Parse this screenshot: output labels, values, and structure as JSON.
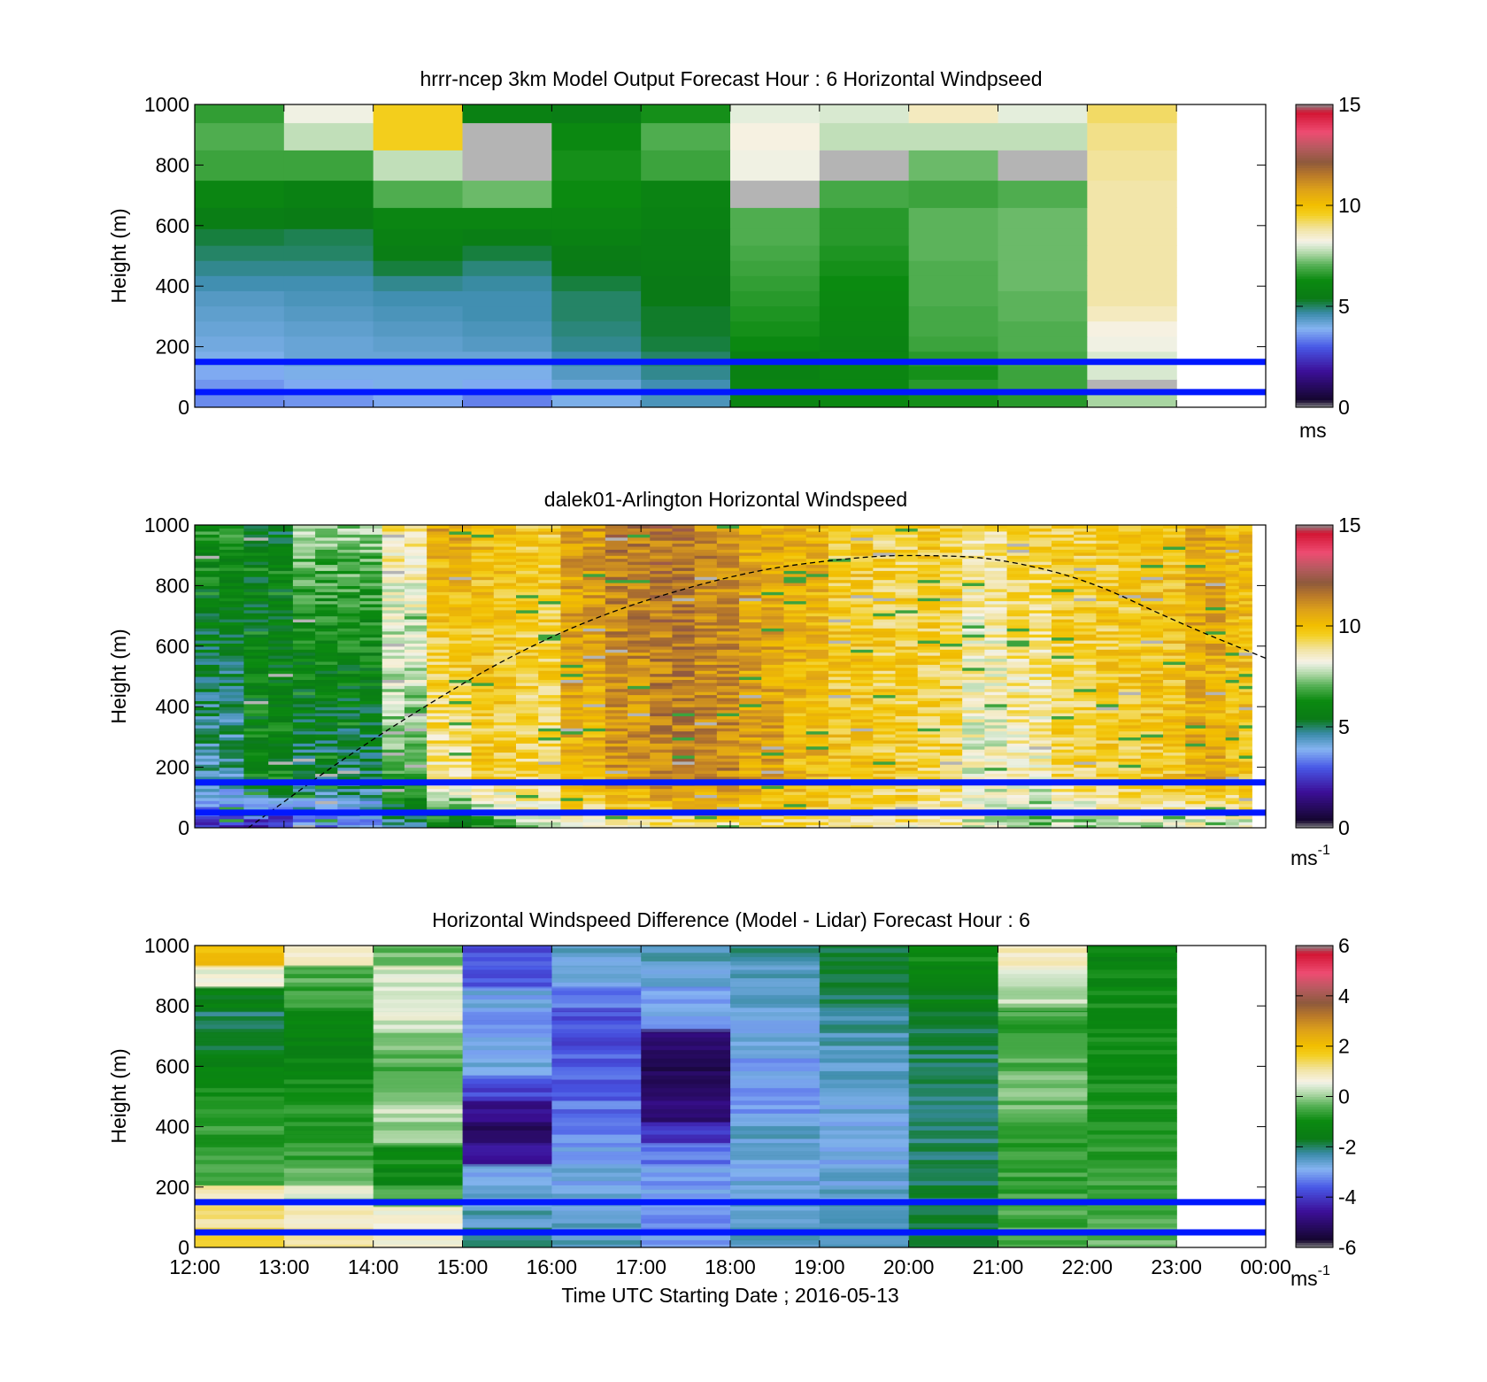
{
  "xlabel": "Time UTC  Starting Date ; 2016-05-13",
  "x_ticks": [
    "12:00",
    "13:00",
    "14:00",
    "15:00",
    "16:00",
    "17:00",
    "18:00",
    "19:00",
    "20:00",
    "21:00",
    "22:00",
    "23:00",
    "00:00"
  ],
  "colors": {
    "reference_lines": "#0018ff",
    "gray_nodata": "#b4b4b4"
  },
  "chart_data": [
    {
      "type": "heatmap",
      "title": "hrrr-ncep 3km Model Output   Forecast Hour : 6 Horizontal Windpseed",
      "xlabel": "",
      "ylabel": "Height (m)",
      "ylim": [
        0,
        1000
      ],
      "yticks": [
        0,
        200,
        400,
        600,
        800,
        1000
      ],
      "colorbar": {
        "min": 0,
        "max": 15,
        "ticks": [
          0,
          5,
          10,
          15
        ],
        "label": "ms",
        "label_sup": ""
      },
      "reference_lines_m": [
        50,
        150
      ],
      "x_hours": [
        12,
        13,
        14,
        15,
        16,
        17,
        18,
        19,
        20,
        21,
        22
      ],
      "y_levels_m": [
        30,
        70,
        115,
        160,
        210,
        260,
        310,
        360,
        410,
        460,
        510,
        560,
        620,
        700,
        800,
        900,
        980
      ],
      "values": [
        [
          3.5,
          3.6,
          3.8,
          3.4,
          4.0,
          4.5,
          6.0,
          6.2,
          6.4,
          6.6,
          7.6
        ],
        [
          3.6,
          3.8,
          4.0,
          3.8,
          4.2,
          4.6,
          6.0,
          6.2,
          6.6,
          6.8,
          -1
        ],
        [
          3.8,
          4.0,
          4.0,
          4.0,
          4.4,
          4.8,
          5.8,
          6.0,
          6.4,
          6.8,
          8.0
        ],
        [
          4.0,
          4.2,
          4.2,
          4.2,
          4.6,
          5.0,
          5.8,
          6.0,
          6.6,
          6.9,
          8.0
        ],
        [
          4.1,
          4.2,
          4.3,
          4.4,
          4.8,
          5.2,
          6.2,
          5.9,
          6.8,
          7.0,
          8.2
        ],
        [
          4.2,
          4.3,
          4.4,
          4.5,
          4.9,
          5.3,
          6.4,
          6.0,
          6.9,
          7.0,
          8.3
        ],
        [
          4.3,
          4.4,
          4.5,
          4.6,
          5.0,
          5.3,
          6.5,
          6.1,
          6.9,
          7.1,
          8.6
        ],
        [
          4.4,
          4.5,
          4.6,
          4.6,
          5.0,
          5.4,
          6.6,
          6.2,
          7.0,
          7.1,
          8.8
        ],
        [
          4.6,
          4.6,
          4.8,
          4.7,
          5.2,
          5.4,
          6.7,
          6.3,
          7.0,
          7.2,
          8.8
        ],
        [
          4.8,
          4.8,
          5.2,
          4.9,
          5.4,
          5.5,
          6.8,
          6.4,
          7.0,
          7.2,
          8.8
        ],
        [
          5.0,
          5.0,
          5.6,
          5.2,
          5.5,
          5.6,
          6.9,
          6.5,
          7.1,
          7.2,
          8.8
        ],
        [
          5.2,
          5.1,
          5.8,
          5.6,
          5.8,
          5.6,
          7.0,
          6.6,
          7.1,
          7.2,
          8.8
        ],
        [
          5.6,
          5.5,
          6.0,
          6.0,
          6.0,
          5.8,
          7.0,
          6.6,
          7.1,
          7.2,
          8.8
        ],
        [
          6.0,
          5.8,
          7.0,
          7.2,
          6.3,
          5.9,
          -1,
          6.9,
          6.8,
          7.0,
          8.8
        ],
        [
          6.8,
          6.8,
          7.8,
          -1,
          6.4,
          6.8,
          8.2,
          -1,
          7.2,
          -1,
          8.9
        ],
        [
          7.0,
          7.8,
          9.6,
          -1,
          6.2,
          7.0,
          8.3,
          7.8,
          7.8,
          7.8,
          9.0
        ],
        [
          6.7,
          8.2,
          9.6,
          5.8,
          5.6,
          6.4,
          8.1,
          8.0,
          8.6,
          8.1,
          9.2
        ]
      ]
    },
    {
      "type": "heatmap",
      "title": "dalek01-Arlington  Horizontal Windspeed",
      "xlabel": "",
      "ylabel": "Height (m)",
      "ylim": [
        0,
        1000
      ],
      "yticks": [
        0,
        200,
        400,
        600,
        800,
        1000
      ],
      "colorbar": {
        "min": 0,
        "max": 15,
        "ticks": [
          0,
          5,
          10,
          15
        ],
        "label": "ms",
        "label_sup": "-1"
      },
      "reference_lines_m": [
        50,
        150
      ],
      "x_range_hours": [
        12.0,
        23.85
      ],
      "annotations": [
        {
          "type": "curve",
          "style": "dashed",
          "points": [
            [
              12.6,
              0
            ],
            [
              14,
              300
            ],
            [
              16,
              650
            ],
            [
              18,
              840
            ],
            [
              19.5,
              898
            ],
            [
              20.3,
              900
            ],
            [
              21,
              890
            ],
            [
              22,
              820
            ],
            [
              23,
              680
            ],
            [
              24,
              560
            ]
          ]
        }
      ],
      "profiles": [
        {
          "h_start": 12.0,
          "h_end": 12.55,
          "low": 2.5,
          "mid": 4.5,
          "high": 6.5
        },
        {
          "h_start": 12.55,
          "h_end": 13.1,
          "low": 2.0,
          "mid": 6.0,
          "high": 5.5
        },
        {
          "h_start": 13.1,
          "h_end": 13.6,
          "low": 3.5,
          "mid": 5.0,
          "high": 7.5
        },
        {
          "h_start": 13.6,
          "h_end": 14.1,
          "low": 3.5,
          "mid": 5.0,
          "high": 7.5
        },
        {
          "h_start": 14.1,
          "h_end": 14.6,
          "low": 4.5,
          "mid": 7.0,
          "high": 9.0
        },
        {
          "h_start": 14.6,
          "h_end": 15.1,
          "low": 5.5,
          "mid": 8.8,
          "high": 10.6
        },
        {
          "h_start": 15.1,
          "h_end": 15.6,
          "low": 6.5,
          "mid": 9.5,
          "high": 10.2
        },
        {
          "h_start": 15.6,
          "h_end": 16.1,
          "low": 7.5,
          "mid": 9.3,
          "high": 9.8
        },
        {
          "h_start": 16.1,
          "h_end": 16.6,
          "low": 8.5,
          "mid": 10.3,
          "high": 10.9
        },
        {
          "h_start": 16.6,
          "h_end": 17.1,
          "low": 8.8,
          "mid": 10.9,
          "high": 11.6
        },
        {
          "h_start": 17.1,
          "h_end": 17.6,
          "low": 9.0,
          "mid": 11.3,
          "high": 11.7
        },
        {
          "h_start": 17.6,
          "h_end": 18.1,
          "low": 9.0,
          "mid": 11.2,
          "high": 11.2
        },
        {
          "h_start": 18.1,
          "h_end": 18.6,
          "low": 9.2,
          "mid": 10.7,
          "high": 10.6
        },
        {
          "h_start": 18.6,
          "h_end": 19.1,
          "low": 9.2,
          "mid": 10.2,
          "high": 10.3
        },
        {
          "h_start": 19.1,
          "h_end": 19.6,
          "low": 9.0,
          "mid": 9.8,
          "high": 9.7
        },
        {
          "h_start": 19.6,
          "h_end": 20.1,
          "low": 8.8,
          "mid": 9.7,
          "high": 9.4
        },
        {
          "h_start": 20.1,
          "h_end": 20.6,
          "low": 8.6,
          "mid": 9.4,
          "high": 9.6
        },
        {
          "h_start": 20.6,
          "h_end": 21.1,
          "low": 8.0,
          "mid": 8.2,
          "high": 9.0
        },
        {
          "h_start": 21.1,
          "h_end": 21.6,
          "low": 6.8,
          "mid": 8.5,
          "high": 9.5
        },
        {
          "h_start": 21.6,
          "h_end": 22.1,
          "low": 7.5,
          "mid": 9.4,
          "high": 9.6
        },
        {
          "h_start": 22.1,
          "h_end": 22.6,
          "low": 7.8,
          "mid": 9.6,
          "high": 9.8
        },
        {
          "h_start": 22.6,
          "h_end": 23.1,
          "low": 7.8,
          "mid": 9.8,
          "high": 10.0
        },
        {
          "h_start": 23.1,
          "h_end": 23.55,
          "low": 8.0,
          "mid": 10.4,
          "high": 10.6
        },
        {
          "h_start": 23.55,
          "h_end": 23.85,
          "low": 8.0,
          "mid": 10.0,
          "high": 10.2
        }
      ]
    },
    {
      "type": "heatmap",
      "title": "Horizontal Windspeed Difference (Model - Lidar) Forecast Hour : 6",
      "xlabel": "Time UTC  Starting Date ; 2016-05-13",
      "ylabel": "Height (m)",
      "ylim": [
        0,
        1000
      ],
      "yticks": [
        0,
        200,
        400,
        600,
        800,
        1000
      ],
      "colorbar": {
        "min": -6,
        "max": 6,
        "ticks": [
          -6,
          -4,
          -2,
          0,
          2,
          4,
          6
        ],
        "label": "ms",
        "label_sup": "-1"
      },
      "reference_lines_m": [
        50,
        150
      ],
      "x_hours": [
        12,
        13,
        14,
        15,
        16,
        17,
        18,
        19,
        20,
        21,
        22
      ],
      "y_levels_m": [
        30,
        100,
        170,
        240,
        300,
        380,
        450,
        520,
        600,
        680,
        750,
        820,
        900,
        960
      ],
      "values": [
        [
          1.6,
          1.2,
          0.8,
          -2.0,
          -2.5,
          -3.0,
          -2.6,
          -2.4,
          -1.8,
          -0.4,
          -0.3
        ],
        [
          1.2,
          1.0,
          0.6,
          -2.4,
          -2.6,
          -3.2,
          -2.7,
          -2.5,
          -1.8,
          -0.5,
          -0.4
        ],
        [
          1.0,
          0.4,
          -0.6,
          -2.6,
          -2.7,
          -2.9,
          -2.6,
          -2.6,
          -1.8,
          -0.6,
          -0.5
        ],
        [
          -0.5,
          -0.4,
          -1.2,
          -2.8,
          -2.8,
          -3.0,
          -2.8,
          -2.7,
          -1.9,
          -0.6,
          -0.6
        ],
        [
          -0.6,
          -0.6,
          -1.0,
          -4.6,
          -3.0,
          -3.4,
          -2.8,
          -2.8,
          -2.0,
          -0.7,
          -0.7
        ],
        [
          -0.7,
          -0.7,
          0.0,
          -5.2,
          -3.2,
          -4.0,
          -2.6,
          -2.8,
          -2.0,
          -0.7,
          -0.8
        ],
        [
          -0.8,
          -0.8,
          0.2,
          -4.8,
          -3.4,
          -5.0,
          -3.0,
          -2.7,
          -2.0,
          -0.3,
          -0.8
        ],
        [
          -1.0,
          -1.0,
          -0.2,
          -3.8,
          -3.6,
          -5.2,
          -3.2,
          -2.6,
          -2.0,
          -0.2,
          -0.9
        ],
        [
          -1.4,
          -1.2,
          -0.4,
          -2.8,
          -3.6,
          -5.3,
          -3.0,
          -2.5,
          -2.0,
          -0.4,
          -1.0
        ],
        [
          -1.8,
          -1.3,
          -0.1,
          -3.0,
          -3.8,
          -5.0,
          -2.8,
          -2.4,
          -1.9,
          -0.6,
          -1.0
        ],
        [
          -2.0,
          -1.0,
          0.4,
          -3.0,
          -3.8,
          -3.0,
          -2.7,
          -2.2,
          -1.8,
          -0.6,
          -1.0
        ],
        [
          -1.4,
          -0.6,
          0.6,
          -2.8,
          -3.4,
          -2.9,
          -2.6,
          -2.0,
          -1.5,
          0.2,
          -1.0
        ],
        [
          0.6,
          -0.4,
          0.4,
          -3.6,
          -2.8,
          -2.6,
          -2.4,
          -1.8,
          -1.2,
          0.4,
          -1.1
        ],
        [
          2.0,
          0.8,
          -0.3,
          -3.8,
          -2.6,
          -2.5,
          -2.2,
          -1.8,
          -1.0,
          0.8,
          -1.2
        ]
      ]
    }
  ]
}
